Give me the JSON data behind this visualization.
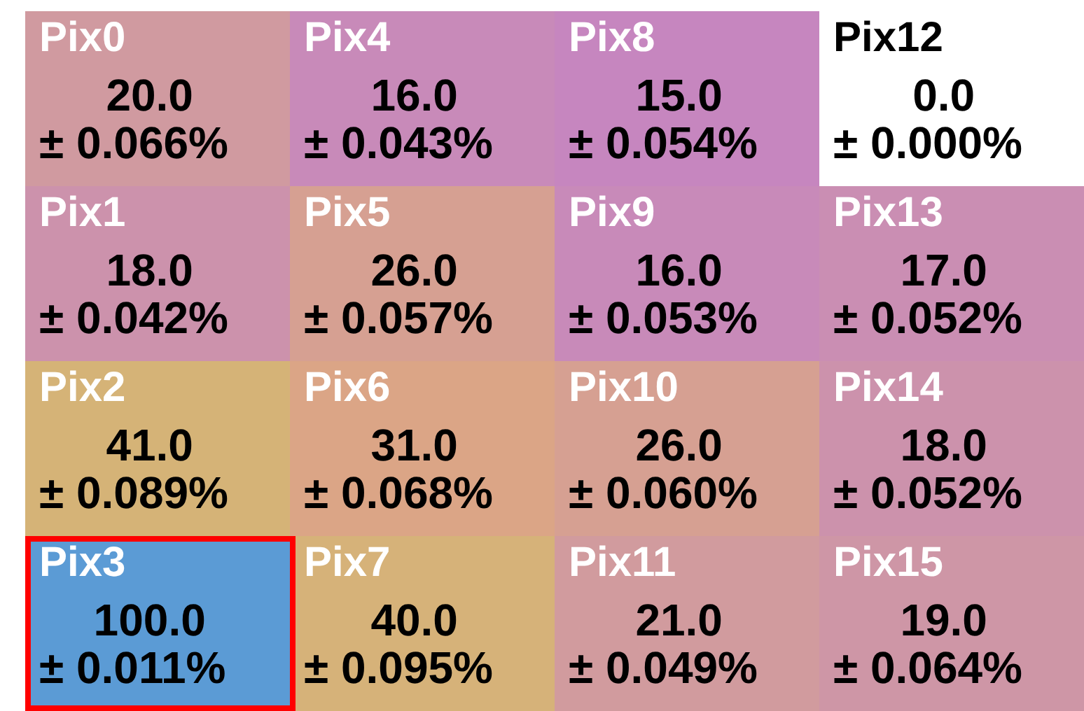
{
  "chart_data": {
    "type": "heatmap",
    "categories": [
      null,
      null,
      null,
      null
    ],
    "y_categories": [
      null,
      null,
      null,
      null
    ],
    "tick_labels": false,
    "cells": [
      [
        20,
        16,
        15,
        0
      ],
      [
        18,
        26,
        16,
        17
      ],
      [
        41,
        31,
        26,
        18
      ],
      [
        100,
        40,
        21,
        19
      ]
    ],
    "cell_labels": [
      [
        "20.0",
        "16.0",
        "15.0",
        "0.0"
      ],
      [
        "18.0",
        "26.0",
        "16.0",
        "17.0"
      ],
      [
        "41.0",
        "31.0",
        "26.0",
        "18.0"
      ],
      [
        "100.0",
        "40.0",
        "21.0",
        "19.0"
      ]
    ],
    "annotations": [
      "Pix0",
      "± 0.066%",
      "Pix4",
      "± 0.043%",
      "Pix8",
      "± 0.054%",
      "Pix12",
      "± 0.000%",
      "Pix1",
      "± 0.042%",
      "Pix5",
      "± 0.057%",
      "Pix9",
      "± 0.053%",
      "Pix13",
      "± 0.052%",
      "Pix2",
      "± 0.089%",
      "Pix6",
      "± 0.068%",
      "Pix10",
      "± 0.060%",
      "Pix14",
      "± 0.052%",
      "Pix3",
      "± 0.011%",
      "Pix7",
      "± 0.095%",
      "Pix11",
      "± 0.049%",
      "Pix15",
      "± 0.064%"
    ]
  }
}
